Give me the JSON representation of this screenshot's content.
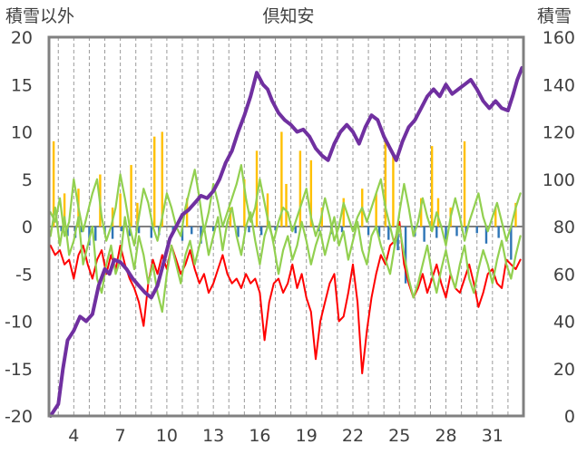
{
  "chart_data": {
    "type": "line",
    "title": "倶知安",
    "ylabel_left": "積雪以外",
    "ylabel_right": "積雪",
    "x_ticks": [
      "4",
      "7",
      "10",
      "13",
      "16",
      "19",
      "22",
      "25",
      "28",
      "31"
    ],
    "x_tick_values": [
      4,
      7,
      10,
      13,
      16,
      19,
      22,
      25,
      28,
      31
    ],
    "xlim": [
      2.4,
      33.0
    ],
    "y_left_ticks": [
      "20",
      "15",
      "10",
      "5",
      "0",
      "-5",
      "-10",
      "-15",
      "-20"
    ],
    "y_left_tick_values": [
      20,
      15,
      10,
      5,
      0,
      -5,
      -10,
      -15,
      -20
    ],
    "ylim_left": [
      -20,
      20
    ],
    "y_right_ticks": [
      "160",
      "140",
      "120",
      "100",
      "80",
      "60",
      "40",
      "20",
      "0"
    ],
    "y_right_tick_values": [
      160,
      140,
      120,
      100,
      80,
      60,
      40,
      20,
      0
    ],
    "ylim_right": [
      0,
      160
    ],
    "grid": "vertical-dashed",
    "colors": {
      "snow_depth": "#7030a0",
      "max_temp": "#92d050",
      "min_temp": "#ff0000",
      "precip": "#ffc000",
      "sunshine": "#2e75b6",
      "frame": "#808080"
    },
    "series": [
      {
        "key": "snow_depth",
        "axis": "right",
        "x": [
          2.5,
          3.0,
          3.3,
          3.6,
          4.0,
          4.4,
          4.8,
          5.2,
          5.6,
          6.0,
          6.3,
          6.6,
          7.0,
          7.4,
          7.8,
          8.2,
          8.6,
          9.0,
          9.4,
          9.8,
          10.2,
          10.6,
          11.0,
          11.4,
          11.8,
          12.2,
          12.6,
          13.0,
          13.4,
          13.8,
          14.2,
          14.6,
          15.0,
          15.4,
          15.8,
          16.2,
          16.5,
          16.8,
          17.2,
          17.6,
          18.0,
          18.4,
          18.8,
          19.2,
          19.6,
          20.0,
          20.4,
          20.8,
          21.2,
          21.6,
          22.0,
          22.4,
          22.8,
          23.2,
          23.6,
          24.0,
          24.4,
          24.8,
          25.2,
          25.6,
          26.0,
          26.4,
          26.8,
          27.2,
          27.6,
          28.0,
          28.4,
          28.8,
          29.2,
          29.6,
          30.0,
          30.4,
          30.8,
          31.2,
          31.6,
          32.0,
          32.3,
          32.6,
          32.9
        ],
        "y": [
          0,
          5,
          20,
          32,
          36,
          42,
          40,
          43,
          55,
          62,
          60,
          66,
          65,
          62,
          58,
          55,
          52,
          50,
          55,
          65,
          75,
          80,
          85,
          87,
          90,
          93,
          92,
          95,
          100,
          107,
          112,
          120,
          127,
          135,
          145,
          140,
          138,
          133,
          128,
          125,
          123,
          120,
          121,
          118,
          113,
          110,
          108,
          115,
          120,
          123,
          120,
          115,
          122,
          127,
          125,
          118,
          113,
          108,
          116,
          122,
          125,
          130,
          135,
          138,
          135,
          140,
          136,
          138,
          140,
          142,
          138,
          133,
          130,
          133,
          130,
          129,
          135,
          142,
          147
        ]
      },
      {
        "key": "max_temp",
        "axis": "left",
        "x": [
          2.5,
          2.8,
          3.1,
          3.4,
          3.7,
          4.0,
          4.3,
          4.6,
          4.9,
          5.2,
          5.5,
          5.8,
          6.1,
          6.4,
          6.7,
          7.0,
          7.3,
          7.6,
          7.9,
          8.2,
          8.5,
          8.8,
          9.1,
          9.4,
          9.7,
          10.0,
          10.3,
          10.6,
          10.9,
          11.2,
          11.5,
          11.8,
          12.1,
          12.4,
          12.7,
          13.0,
          13.3,
          13.6,
          13.9,
          14.2,
          14.5,
          14.8,
          15.1,
          15.4,
          15.7,
          16.0,
          16.3,
          16.6,
          16.9,
          17.2,
          17.5,
          17.8,
          18.1,
          18.4,
          18.7,
          19.0,
          19.3,
          19.6,
          19.9,
          20.2,
          20.5,
          20.8,
          21.1,
          21.4,
          21.7,
          22.0,
          22.3,
          22.6,
          22.9,
          23.2,
          23.5,
          23.8,
          24.1,
          24.4,
          24.7,
          25.0,
          25.3,
          25.6,
          25.9,
          26.2,
          26.5,
          26.8,
          27.1,
          27.4,
          27.7,
          28.0,
          28.3,
          28.6,
          28.9,
          29.2,
          29.5,
          29.8,
          30.1,
          30.4,
          30.7,
          31.0,
          31.3,
          31.6,
          31.9,
          32.2,
          32.5,
          32.8
        ],
        "y": [
          1.5,
          0.5,
          3.0,
          -1.0,
          0.5,
          5.0,
          2.0,
          -0.5,
          1.5,
          3.5,
          5.0,
          1.0,
          -1.5,
          0.0,
          2.0,
          5.5,
          3.0,
          0.0,
          -2.0,
          1.0,
          4.0,
          2.5,
          0.0,
          -1.5,
          1.0,
          3.5,
          2.0,
          0.0,
          -1.0,
          2.0,
          4.0,
          6.0,
          3.0,
          -0.5,
          1.5,
          4.5,
          2.5,
          0.0,
          1.5,
          3.0,
          4.5,
          6.5,
          3.0,
          0.5,
          2.0,
          5.0,
          2.5,
          0.0,
          -1.5,
          0.5,
          2.0,
          1.5,
          -0.5,
          1.0,
          2.5,
          4.0,
          1.0,
          -1.0,
          0.5,
          3.0,
          1.0,
          -1.5,
          0.0,
          2.5,
          1.0,
          -0.5,
          1.0,
          2.0,
          0.5,
          2.0,
          3.5,
          5.0,
          2.0,
          0.0,
          -2.0,
          1.5,
          4.5,
          2.0,
          -1.0,
          0.5,
          3.0,
          1.0,
          -0.5,
          1.5,
          0.0,
          -2.0,
          1.0,
          3.0,
          1.0,
          -1.5,
          0.5,
          2.0,
          3.5,
          1.0,
          -0.5,
          1.0,
          2.5,
          0.5,
          -1.5,
          0.0,
          2.0,
          3.5
        ]
      },
      {
        "key": "max_temp_2",
        "axis": "left",
        "x": [
          2.5,
          2.8,
          3.1,
          3.4,
          3.7,
          4.0,
          4.3,
          4.6,
          4.9,
          5.2,
          5.5,
          5.8,
          6.1,
          6.4,
          6.7,
          7.0,
          7.3,
          7.6,
          7.9,
          8.2,
          8.5,
          8.8,
          9.1,
          9.4,
          9.7,
          10.0,
          10.3,
          10.6,
          10.9,
          11.2,
          11.5,
          11.8,
          12.1,
          12.4,
          12.7,
          13.0,
          13.3,
          13.6,
          13.9,
          14.2,
          14.5,
          14.8,
          15.1,
          15.4,
          15.7,
          16.0,
          16.3,
          16.6,
          16.9,
          17.2,
          17.5,
          17.8,
          18.1,
          18.4,
          18.7,
          19.0,
          19.3,
          19.6,
          19.9,
          20.2,
          20.5,
          20.8,
          21.1,
          21.4,
          21.7,
          22.0,
          22.3,
          22.6,
          22.9,
          23.2,
          23.5,
          23.8,
          24.1,
          24.4,
          24.7,
          25.0,
          25.3,
          25.6,
          25.9,
          26.2,
          26.5,
          26.8,
          27.1,
          27.4,
          27.7,
          28.0,
          28.3,
          28.6,
          28.9,
          29.2,
          29.5,
          29.8,
          30.1,
          30.4,
          30.7,
          31.0,
          31.3,
          31.6,
          31.9,
          32.2,
          32.5,
          32.8
        ],
        "y": [
          -1.0,
          2.0,
          -2.0,
          1.0,
          -3.0,
          -1.5,
          1.0,
          -4.0,
          -2.0,
          0.0,
          -5.5,
          -7.0,
          -4.0,
          -2.0,
          -5.0,
          -3.5,
          1.0,
          -2.0,
          -4.5,
          -1.0,
          -3.0,
          -6.0,
          -4.0,
          -7.0,
          -9.0,
          -5.0,
          -2.0,
          -4.0,
          -6.0,
          -3.0,
          -1.5,
          -4.0,
          -2.0,
          0.0,
          -3.0,
          -1.0,
          1.0,
          -2.5,
          0.5,
          2.0,
          -1.0,
          -3.0,
          0.0,
          1.5,
          -1.5,
          -4.0,
          -1.0,
          0.5,
          -2.0,
          -5.0,
          -2.5,
          -1.0,
          -3.5,
          -2.0,
          0.5,
          -1.5,
          -4.0,
          -2.0,
          -0.5,
          -3.0,
          -1.0,
          1.0,
          -2.0,
          -0.5,
          -3.5,
          -1.5,
          0.5,
          -2.5,
          -4.0,
          -1.0,
          0.0,
          -2.0,
          -3.5,
          -5.0,
          -2.0,
          0.0,
          -3.0,
          -5.5,
          -7.5,
          -6.0,
          -4.0,
          -2.0,
          -5.0,
          -7.0,
          -4.5,
          -2.5,
          -5.0,
          -6.5,
          -4.0,
          -2.0,
          -5.5,
          -7.0,
          -4.5,
          -2.5,
          -4.0,
          -6.0,
          -3.5,
          -1.5,
          -4.0,
          -5.5,
          -3.0,
          -1.0
        ]
      },
      {
        "key": "min_temp",
        "axis": "left",
        "x": [
          2.5,
          2.8,
          3.1,
          3.4,
          3.7,
          4.0,
          4.3,
          4.6,
          4.9,
          5.2,
          5.5,
          5.8,
          6.1,
          6.4,
          6.7,
          7.0,
          7.3,
          7.6,
          7.9,
          8.2,
          8.5,
          8.8,
          9.1,
          9.4,
          9.7,
          10.0,
          10.3,
          10.6,
          10.9,
          11.2,
          11.5,
          11.8,
          12.1,
          12.4,
          12.7,
          13.0,
          13.3,
          13.6,
          13.9,
          14.2,
          14.5,
          14.8,
          15.1,
          15.4,
          15.7,
          16.0,
          16.3,
          16.6,
          16.9,
          17.2,
          17.5,
          17.8,
          18.1,
          18.4,
          18.7,
          19.0,
          19.3,
          19.6,
          19.9,
          20.2,
          20.5,
          20.8,
          21.1,
          21.4,
          21.7,
          22.0,
          22.3,
          22.6,
          22.9,
          23.2,
          23.5,
          23.8,
          24.1,
          24.4,
          24.7,
          25.0,
          25.3,
          25.6,
          25.9,
          26.2,
          26.5,
          26.8,
          27.1,
          27.4,
          27.7,
          28.0,
          28.3,
          28.6,
          28.9,
          29.2,
          29.5,
          29.8,
          30.1,
          30.4,
          30.7,
          31.0,
          31.3,
          31.6,
          31.9,
          32.2,
          32.5,
          32.8
        ],
        "y": [
          -2.0,
          -3.0,
          -2.5,
          -4.0,
          -3.5,
          -5.5,
          -3.0,
          -2.0,
          -4.0,
          -5.5,
          -3.5,
          -2.5,
          -5.0,
          -3.0,
          -4.5,
          -2.0,
          -4.0,
          -5.5,
          -6.5,
          -8.0,
          -10.5,
          -6.0,
          -3.5,
          -5.0,
          -3.0,
          -4.5,
          -2.0,
          -3.5,
          -5.0,
          -4.0,
          -2.5,
          -4.5,
          -6.0,
          -5.0,
          -7.0,
          -6.0,
          -4.5,
          -3.0,
          -5.0,
          -6.0,
          -5.5,
          -6.5,
          -5.0,
          -6.0,
          -5.5,
          -7.0,
          -12.0,
          -8.0,
          -6.0,
          -5.5,
          -7.0,
          -6.0,
          -4.0,
          -6.5,
          -5.0,
          -7.5,
          -9.0,
          -14.0,
          -10.0,
          -8.0,
          -6.0,
          -5.0,
          -10.0,
          -9.5,
          -7.0,
          -4.0,
          -8.0,
          -15.5,
          -11.0,
          -7.5,
          -5.0,
          -3.0,
          -4.0,
          -2.0,
          -1.5,
          0.5,
          -4.0,
          -6.0,
          -7.5,
          -6.5,
          -5.0,
          -7.0,
          -5.5,
          -4.0,
          -6.0,
          -7.5,
          -5.0,
          -6.5,
          -7.0,
          -5.5,
          -4.0,
          -6.0,
          -8.5,
          -7.0,
          -5.0,
          -4.5,
          -6.0,
          -6.5,
          -3.5,
          -4.0,
          -4.5,
          -3.5
        ]
      },
      {
        "key": "precip",
        "axis": "left",
        "type": "bar",
        "x": [
          2.7,
          3.4,
          4.3,
          5.7,
          6.5,
          7.0,
          7.7,
          8.1,
          9.2,
          9.7,
          11.3,
          14.1,
          15.0,
          15.8,
          16.5,
          17.4,
          17.7,
          18.6,
          19.3,
          20.0,
          21.4,
          22.6,
          23.5,
          24.1,
          24.6,
          26.4,
          27.1,
          27.5,
          28.3,
          29.2,
          31.2,
          32.5
        ],
        "y": [
          9.0,
          3.5,
          4.0,
          5.5,
          2.0,
          3.5,
          6.5,
          2.5,
          9.5,
          10.0,
          3.0,
          2.0,
          5.0,
          8.0,
          3.5,
          10.0,
          4.5,
          8.0,
          7.0,
          2.0,
          3.0,
          4.0,
          3.5,
          9.0,
          7.5,
          3.0,
          8.5,
          3.0,
          2.0,
          9.0,
          2.0,
          2.5
        ]
      },
      {
        "key": "sunshine",
        "axis": "left",
        "type": "bar",
        "x": [
          3.2,
          3.6,
          4.1,
          4.5,
          5.0,
          5.4,
          6.0,
          6.5,
          7.1,
          7.6,
          8.2,
          9.0,
          9.5,
          10.4,
          11.0,
          11.6,
          12.2,
          13.0,
          14.6,
          15.3,
          16.1,
          17.0,
          18.3,
          19.8,
          20.6,
          21.3,
          22.1,
          23.0,
          23.7,
          24.3,
          24.9,
          25.4,
          26.0,
          26.6,
          27.4,
          28.0,
          28.7,
          29.3,
          30.0,
          30.6,
          31.4,
          32.2
        ],
        "y": [
          -0.5,
          -1.0,
          -1.2,
          -0.6,
          -2.0,
          -1.5,
          -0.8,
          -1.3,
          -0.5,
          -1.0,
          -0.7,
          -1.2,
          -0.9,
          -0.6,
          -1.5,
          -0.8,
          -1.8,
          -0.5,
          -1.1,
          -0.6,
          -0.9,
          -0.4,
          -0.7,
          -0.5,
          -0.8,
          -0.6,
          -0.4,
          -0.9,
          -1.1,
          -1.4,
          -2.5,
          -6.0,
          -1.0,
          -1.6,
          -1.2,
          -1.4,
          -1.0,
          -0.8,
          -0.7,
          -1.8,
          -1.2,
          -3.5
        ]
      }
    ]
  }
}
